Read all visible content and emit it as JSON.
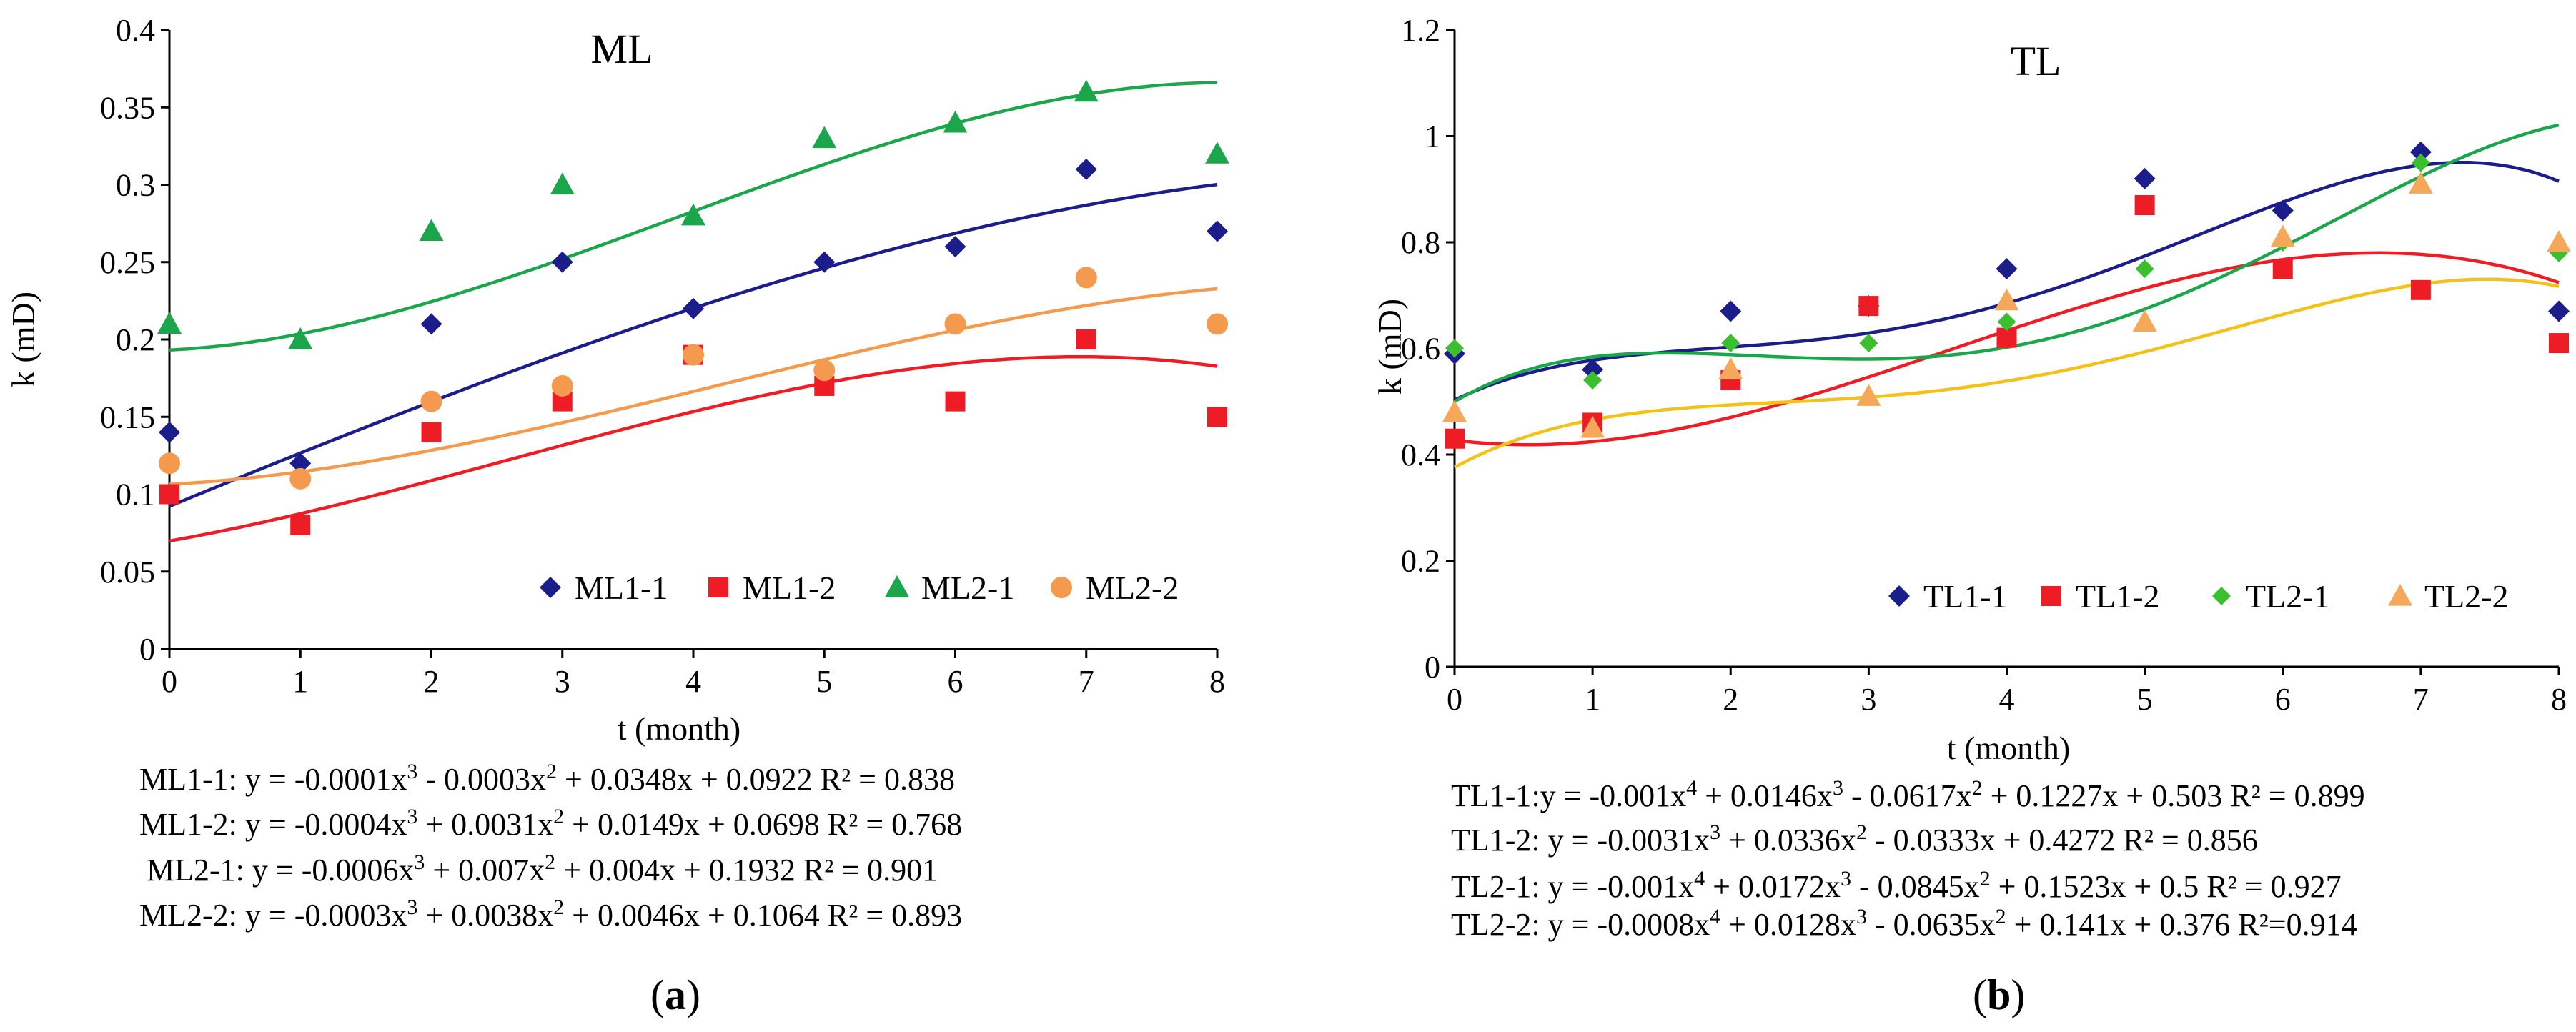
{
  "chart_data": [
    {
      "type": "scatter",
      "title": "ML",
      "xlabel": "t (month)",
      "ylabel": "k (mD)",
      "xlim": [
        0,
        8
      ],
      "ylim": [
        0,
        0.4
      ],
      "x_ticks": [
        "0",
        "1",
        "2",
        "3",
        "4",
        "5",
        "6",
        "7",
        "8"
      ],
      "y_ticks": [
        "0",
        "0.05",
        "0.1",
        "0.15",
        "0.2",
        "0.25",
        "0.3",
        "0.35",
        "0.4"
      ],
      "grid": false,
      "legend_position": "bottom-right",
      "trendline": "polynomial",
      "series": [
        {
          "name": "ML1-1",
          "marker": "diamond",
          "color": "#1b1d8a",
          "line_color": "#1b1d8a",
          "x": [
            0,
            1,
            2,
            3,
            4,
            5,
            6,
            7,
            8
          ],
          "y": [
            0.14,
            0.12,
            0.21,
            0.25,
            0.22,
            0.25,
            0.26,
            0.31,
            0.27
          ],
          "fit": [
            0.0922,
            0.0348,
            -0.0003,
            -0.0001
          ]
        },
        {
          "name": "ML1-2",
          "marker": "square",
          "color": "#ee1c24",
          "line_color": "#ee1c24",
          "x": [
            0,
            1,
            2,
            3,
            4,
            5,
            6,
            7,
            8
          ],
          "y": [
            0.1,
            0.08,
            0.14,
            0.16,
            0.19,
            0.17,
            0.16,
            0.2,
            0.15
          ],
          "fit": [
            0.0698,
            0.0149,
            0.0031,
            -0.0004
          ]
        },
        {
          "name": "ML2-1",
          "marker": "triangle",
          "color": "#1ca64c",
          "line_color": "#1ca64c",
          "x": [
            0,
            1,
            2,
            3,
            4,
            5,
            6,
            7,
            8
          ],
          "y": [
            0.21,
            0.2,
            0.27,
            0.3,
            0.28,
            0.33,
            0.34,
            0.36,
            0.32
          ],
          "fit": [
            0.1932,
            0.004,
            0.007,
            -0.0006
          ]
        },
        {
          "name": "ML2-2",
          "marker": "circle",
          "color": "#f39a4f",
          "line_color": "#f39a4f",
          "x": [
            0,
            1,
            2,
            3,
            4,
            5,
            6,
            7,
            8
          ],
          "y": [
            0.12,
            0.11,
            0.16,
            0.17,
            0.19,
            0.18,
            0.21,
            0.24,
            0.21
          ],
          "fit": [
            0.1064,
            0.0046,
            0.0038,
            -0.0003
          ]
        }
      ],
      "equations": [
        {
          "name": "ML1-1",
          "pre": "ML1-1: y = -0.0001x",
          "parts": [
            [
              "3",
              " - 0.0003x"
            ],
            [
              "2",
              " + 0.0348x + 0.0922  R² = 0.838"
            ]
          ]
        },
        {
          "name": "ML1-2",
          "pre": "ML1-2: y = -0.0004x",
          "parts": [
            [
              "3",
              " + 0.0031x"
            ],
            [
              "2",
              " + 0.0149x + 0.0698  R² = 0.768"
            ]
          ]
        },
        {
          "name": "ML2-1",
          "pre": "ML2-1: y = -0.0006x",
          "parts": [
            [
              "3",
              " + 0.007x"
            ],
            [
              "2",
              " + 0.004x + 0.1932  R² = 0.901"
            ]
          ]
        },
        {
          "name": "ML2-2",
          "pre": "ML2-2: y = -0.0003x",
          "parts": [
            [
              "3",
              " + 0.0038x"
            ],
            [
              "2",
              " + 0.0046x + 0.1064  R² = 0.893"
            ]
          ]
        }
      ],
      "panel_label": [
        "(",
        "a",
        ")"
      ]
    },
    {
      "type": "scatter",
      "title": "TL",
      "xlabel": "t (month)",
      "ylabel": "k (mD)",
      "xlim": [
        0,
        8
      ],
      "ylim": [
        0,
        1.2
      ],
      "x_ticks": [
        "0",
        "1",
        "2",
        "3",
        "4",
        "5",
        "6",
        "7",
        "8"
      ],
      "y_ticks": [
        "0",
        "0.2",
        "0.4",
        "0.6",
        "0.8",
        "1",
        "1.2"
      ],
      "grid": false,
      "legend_position": "bottom-right",
      "trendline": "polynomial",
      "series": [
        {
          "name": "TL1-1",
          "marker": "diamond",
          "color": "#1b1d8a",
          "line_color": "#1b1d8a",
          "x": [
            0,
            1,
            2,
            3,
            4,
            5,
            6,
            7,
            8
          ],
          "y": [
            0.59,
            0.56,
            0.67,
            0.68,
            0.75,
            0.92,
            0.86,
            0.97,
            0.67
          ],
          "fit": [
            0.503,
            0.1227,
            -0.0617,
            0.0146,
            -0.001
          ]
        },
        {
          "name": "TL1-2",
          "marker": "square",
          "color": "#ee1c24",
          "line_color": "#ee1c24",
          "x": [
            0,
            1,
            2,
            3,
            4,
            5,
            6,
            7,
            8
          ],
          "y": [
            0.43,
            0.46,
            0.54,
            0.68,
            0.62,
            0.87,
            0.75,
            0.71,
            0.61
          ],
          "fit": [
            0.4272,
            -0.0333,
            0.0336,
            -0.0031
          ]
        },
        {
          "name": "TL2-1",
          "marker": "diamond-small",
          "color": "#3bbf2e",
          "line_color": "#1ca64c",
          "x": [
            0,
            1,
            2,
            3,
            4,
            5,
            6,
            7,
            8
          ],
          "y": [
            0.6,
            0.54,
            0.61,
            0.61,
            0.65,
            0.75,
            0.8,
            0.95,
            0.78
          ],
          "fit": [
            0.5,
            0.1523,
            -0.0845,
            0.0172,
            -0.001
          ]
        },
        {
          "name": "TL2-2",
          "marker": "triangle",
          "color": "#f5a85a",
          "line_color": "#f2c21a",
          "x": [
            0,
            1,
            2,
            3,
            4,
            5,
            6,
            7,
            8
          ],
          "y": [
            0.48,
            0.45,
            0.56,
            0.51,
            0.69,
            0.65,
            0.81,
            0.91,
            0.8
          ],
          "fit": [
            0.376,
            0.141,
            -0.0635,
            0.0128,
            -0.0008
          ]
        }
      ],
      "equations": [
        {
          "name": "TL1-1",
          "pre": "TL1-1:y = -0.001x",
          "parts": [
            [
              "4",
              " + 0.0146x"
            ],
            [
              "3",
              " - 0.0617x"
            ],
            [
              "2",
              " + 0.1227x + 0.503  R² = 0.899"
            ]
          ]
        },
        {
          "name": "TL1-2",
          "pre": "TL1-2: y = -0.0031x",
          "parts": [
            [
              "3",
              " + 0.0336x"
            ],
            [
              "2",
              " - 0.0333x + 0.4272  R² = 0.856"
            ]
          ]
        },
        {
          "name": "TL2-1",
          "pre": "TL2-1: y = -0.001x",
          "parts": [
            [
              "4",
              " + 0.0172x"
            ],
            [
              "3",
              " - 0.0845x"
            ],
            [
              "2",
              " + 0.1523x + 0.5 R² = 0.927"
            ]
          ]
        },
        {
          "name": "TL2-2",
          "pre": "TL2-2: y = -0.0008x",
          "parts": [
            [
              "4",
              " + 0.0128x"
            ],
            [
              "3",
              " - 0.0635x"
            ],
            [
              "2",
              " + 0.141x + 0.376  R²=0.914"
            ]
          ]
        }
      ],
      "panel_label": [
        "(",
        "b",
        ")"
      ]
    }
  ]
}
